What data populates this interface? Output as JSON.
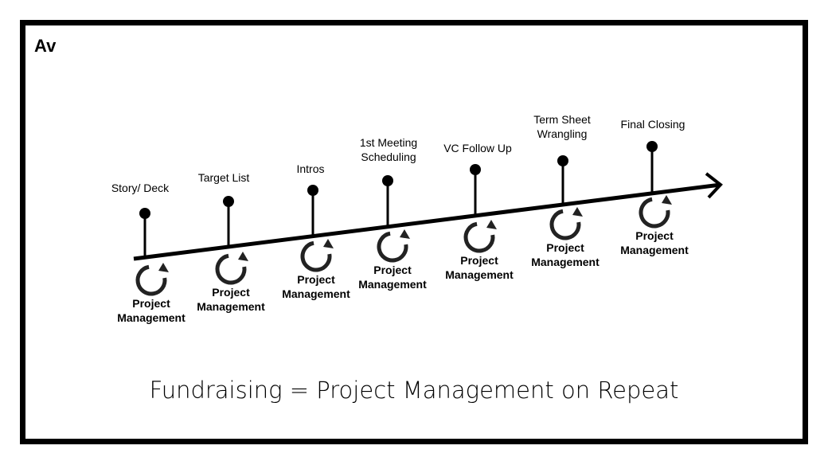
{
  "logo": "Av",
  "caption": "Fundraising = Project Management on Repeat",
  "milestones": [
    {
      "label": [
        "Story/ Deck"
      ],
      "cycle_label": [
        "Project",
        "Management"
      ]
    },
    {
      "label": [
        "Target List"
      ],
      "cycle_label": [
        "Project",
        "Management"
      ]
    },
    {
      "label": [
        "Intros"
      ],
      "cycle_label": [
        "Project",
        "Management"
      ]
    },
    {
      "label": [
        "1st Meeting",
        "Scheduling"
      ],
      "cycle_label": [
        "Project",
        "Management"
      ]
    },
    {
      "label": [
        "VC Follow Up"
      ],
      "cycle_label": [
        "Project",
        "Management"
      ]
    },
    {
      "label": [
        "Term Sheet",
        "Wrangling"
      ],
      "cycle_label": [
        "Project",
        "Management"
      ]
    },
    {
      "label": [
        "Final Closing"
      ],
      "cycle_label": [
        "Project",
        "Management"
      ]
    }
  ],
  "icons": {
    "cycle": "refresh-arrow-icon",
    "arrow": "arrow-right-icon"
  }
}
